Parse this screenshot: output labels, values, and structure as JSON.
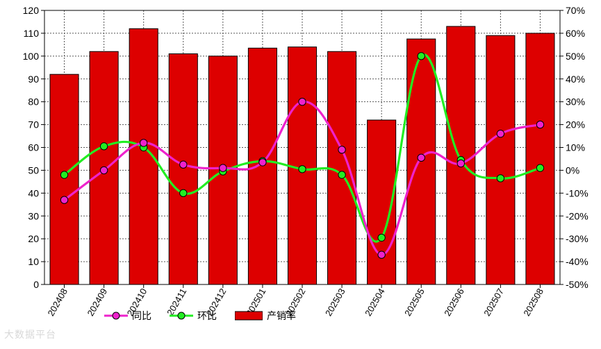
{
  "chart_data": {
    "type": "bar",
    "categories": [
      "202408",
      "202409",
      "202410",
      "202411",
      "202412",
      "202501",
      "202502",
      "202503",
      "202504",
      "202505",
      "202506",
      "202507",
      "202508"
    ],
    "series": [
      {
        "name": "产销率",
        "type": "bar",
        "axis": "left",
        "color": "#dd0000",
        "values": [
          92,
          102,
          112,
          101,
          100,
          103.5,
          104,
          102,
          72,
          107.5,
          113,
          109,
          110
        ]
      },
      {
        "name": "同比",
        "type": "line",
        "axis": "right",
        "color": "#ee22cc",
        "values": [
          -13,
          0,
          12,
          2.5,
          1,
          3.5,
          30,
          9,
          -37,
          5.5,
          3,
          16,
          20
        ]
      },
      {
        "name": "环比",
        "type": "line",
        "axis": "right",
        "color": "#22ee22",
        "values": [
          -2,
          10.5,
          10,
          -10,
          -0.5,
          4,
          0.5,
          -2,
          -29.5,
          50,
          4.5,
          -3.5,
          1
        ]
      }
    ],
    "y_left": {
      "min": 0,
      "max": 120,
      "step": 10,
      "ticks": [
        "0",
        "10",
        "20",
        "30",
        "40",
        "50",
        "60",
        "70",
        "80",
        "90",
        "100",
        "110",
        "120"
      ]
    },
    "y_right": {
      "min": -50,
      "max": 70,
      "step": 10,
      "ticks": [
        "-50%",
        "-40%",
        "-30%",
        "-20%",
        "-10%",
        "0%",
        "10%",
        "20%",
        "30%",
        "40%",
        "50%",
        "60%",
        "70%"
      ]
    },
    "grid": true,
    "legend_position": "bottom-left"
  },
  "legend": {
    "items": [
      {
        "label": "同比",
        "color": "#ee22cc",
        "kind": "line"
      },
      {
        "label": "环比",
        "color": "#22ee22",
        "kind": "line"
      },
      {
        "label": "产销率",
        "color": "#dd0000",
        "kind": "bar"
      }
    ]
  },
  "watermark": {
    "text": "大数据平台"
  }
}
